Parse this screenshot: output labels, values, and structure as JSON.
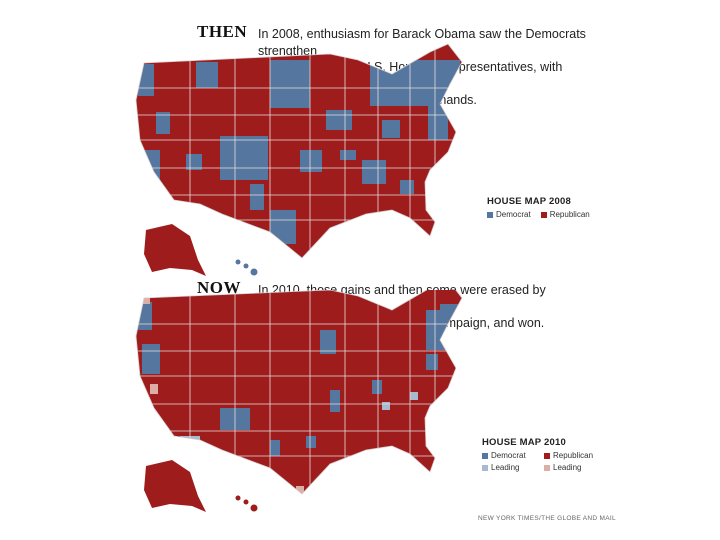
{
  "then": {
    "label": "THEN",
    "caption": [
      "In 2008, enthusiasm for Barack Obama saw the Democrats strengthen",
      "their control of the U.S. House of Representatives, with several",
      "Republican-held seats changing hands."
    ],
    "legend": {
      "title": "HOUSE MAP 2008",
      "items": [
        {
          "label": "Democrat",
          "color": "#55769f"
        },
        {
          "label": "Republican",
          "color": "#9e1c1c"
        }
      ]
    }
  },
  "now": {
    "label": "NOW",
    "caption": [
      "In 2010, those gains and then some were erased by Republicans,",
      "who largely ran an anti-Obama campaign, and won."
    ],
    "legend": {
      "title": "HOUSE MAP 2010",
      "items": [
        {
          "label": "Democrat",
          "color": "#55769f"
        },
        {
          "label": "Republican",
          "color": "#9e1c1c"
        },
        {
          "label": "Leading",
          "color": "#a9b9cf"
        },
        {
          "label": "Leading",
          "color": "#dcaea6"
        }
      ]
    }
  },
  "colors": {
    "democrat": "#55769f",
    "republican": "#9e1c1c",
    "dem_leading": "#a9b9cf",
    "rep_leading": "#dcaea6",
    "border": "#e8dede"
  },
  "source": "NEW YORK TIMES/THE GLOBE AND MAIL"
}
